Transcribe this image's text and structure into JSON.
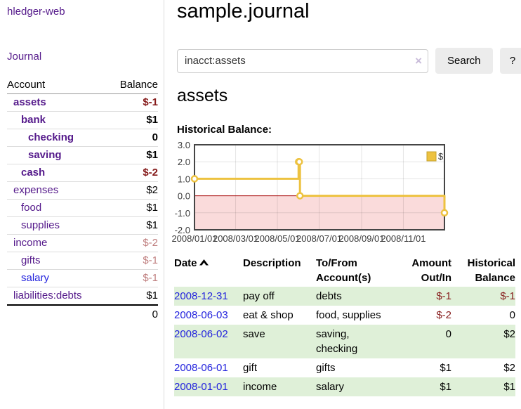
{
  "app": {
    "title": "hledger-web"
  },
  "sidebar": {
    "journal_link": "Journal",
    "table": {
      "headers": [
        "Account",
        "Balance"
      ],
      "rows": [
        {
          "name": "assets",
          "indent": 1,
          "bold": true,
          "link": "purple",
          "balance": "$-1",
          "balance_class": "neg-strong"
        },
        {
          "name": "bank",
          "indent": 2,
          "bold": true,
          "link": "purple",
          "balance": "$1",
          "balance_class": "strong"
        },
        {
          "name": "checking",
          "indent": 3,
          "bold": true,
          "link": "purple",
          "balance": "0",
          "balance_class": "strong"
        },
        {
          "name": "saving",
          "indent": 3,
          "bold": true,
          "link": "purple",
          "balance": "$1",
          "balance_class": "strong"
        },
        {
          "name": "cash",
          "indent": 2,
          "bold": true,
          "link": "purple",
          "balance": "$-2",
          "balance_class": "neg-strong"
        },
        {
          "name": "expenses",
          "indent": 1,
          "bold": false,
          "link": "purple",
          "balance": "$2",
          "balance_class": "plain"
        },
        {
          "name": "food",
          "indent": 2,
          "bold": false,
          "link": "purple",
          "balance": "$1",
          "balance_class": "plain"
        },
        {
          "name": "supplies",
          "indent": 2,
          "bold": false,
          "link": "purple",
          "balance": "$1",
          "balance_class": "plain"
        },
        {
          "name": "income",
          "indent": 1,
          "bold": false,
          "link": "purple",
          "balance": "$-2",
          "balance_class": "neg-muted"
        },
        {
          "name": "gifts",
          "indent": 2,
          "bold": false,
          "link": "purple",
          "balance": "$-1",
          "balance_class": "neg-muted"
        },
        {
          "name": "salary",
          "indent": 2,
          "bold": false,
          "link": "blue",
          "balance": "$-1",
          "balance_class": "neg-muted"
        },
        {
          "name": "liabilities:debts",
          "indent": 1,
          "bold": false,
          "link": "purple",
          "balance": "$1",
          "balance_class": "plain"
        }
      ],
      "total": "0"
    }
  },
  "main": {
    "title": "sample.journal",
    "search": {
      "value": "inacct:assets",
      "clear_icon": "×",
      "button": "Search",
      "help": "?"
    },
    "account_heading": "assets",
    "chart_label": "Historical Balance:"
  },
  "chart_data": {
    "type": "line",
    "step": true,
    "title": "Historical Balance",
    "x_range": [
      "2008-01-01",
      "2008-12-31"
    ],
    "ylim": [
      -2,
      3
    ],
    "yticks": [
      3.0,
      2.0,
      1.0,
      0.0,
      -1.0,
      -2.0
    ],
    "xticks": [
      {
        "date": "2008-01-01",
        "label": "2008/01/01"
      },
      {
        "date": "2008-03-01",
        "label": "2008/03/01"
      },
      {
        "date": "2008-05-01",
        "label": "2008/05/01"
      },
      {
        "date": "2008-07-01",
        "label": "2008/07/01"
      },
      {
        "date": "2008-09-01",
        "label": "2008/09/01"
      },
      {
        "date": "2008-11-01",
        "label": "2008/11/01"
      }
    ],
    "legend": [
      {
        "label": "$"
      }
    ],
    "legend_position": "top-right",
    "grid": true,
    "negative_region_shaded": true,
    "series": [
      {
        "name": "$",
        "points": [
          [
            "2008-01-01",
            1
          ],
          [
            "2008-06-01",
            2
          ],
          [
            "2008-06-02",
            2
          ],
          [
            "2008-06-03",
            0
          ],
          [
            "2008-12-31",
            -1
          ]
        ]
      }
    ]
  },
  "transactions": {
    "columns": [
      {
        "label": "Date",
        "sorted": "asc",
        "align": "left"
      },
      {
        "label": "Description",
        "align": "left"
      },
      {
        "label": "To/From Account(s)",
        "align": "left"
      },
      {
        "label": "Amount Out/In",
        "align": "right"
      },
      {
        "label": "Historical Balance",
        "align": "right"
      }
    ],
    "rows": [
      {
        "date": "2008-12-31",
        "description": "pay off",
        "accounts": "debts",
        "amount": "$-1",
        "amount_class": "neg",
        "balance": "$-1",
        "balance_class": "neg",
        "highlight": true
      },
      {
        "date": "2008-06-03",
        "description": "eat & shop",
        "accounts": "food, supplies",
        "amount": "$-2",
        "amount_class": "neg",
        "balance": "0",
        "balance_class": "",
        "highlight": false
      },
      {
        "date": "2008-06-02",
        "description": "save",
        "accounts": "saving, checking",
        "amount": "0",
        "amount_class": "",
        "balance": "$2",
        "balance_class": "",
        "highlight": true
      },
      {
        "date": "2008-06-01",
        "description": "gift",
        "accounts": "gifts",
        "amount": "$1",
        "amount_class": "",
        "balance": "$2",
        "balance_class": "",
        "highlight": false
      },
      {
        "date": "2008-01-01",
        "description": "income",
        "accounts": "salary",
        "amount": "$1",
        "amount_class": "",
        "balance": "$1",
        "balance_class": "",
        "highlight": true
      }
    ]
  },
  "colors": {
    "link_purple": "#551a8b",
    "link_blue": "#2222dd",
    "negative_strong": "#851a1a",
    "negative_muted": "#bf7e7e",
    "row_highlight_green": "#dff0d8",
    "button_bg": "#ececec",
    "chart_line": "#edc240",
    "chart_legend_border": "#c7a32d",
    "chart_negative_bg": "#fadbdb",
    "chart_zero_line": "#a40000",
    "chart_border": "#454545",
    "chart_grid": "rgba(0,0,0,0.10)"
  }
}
